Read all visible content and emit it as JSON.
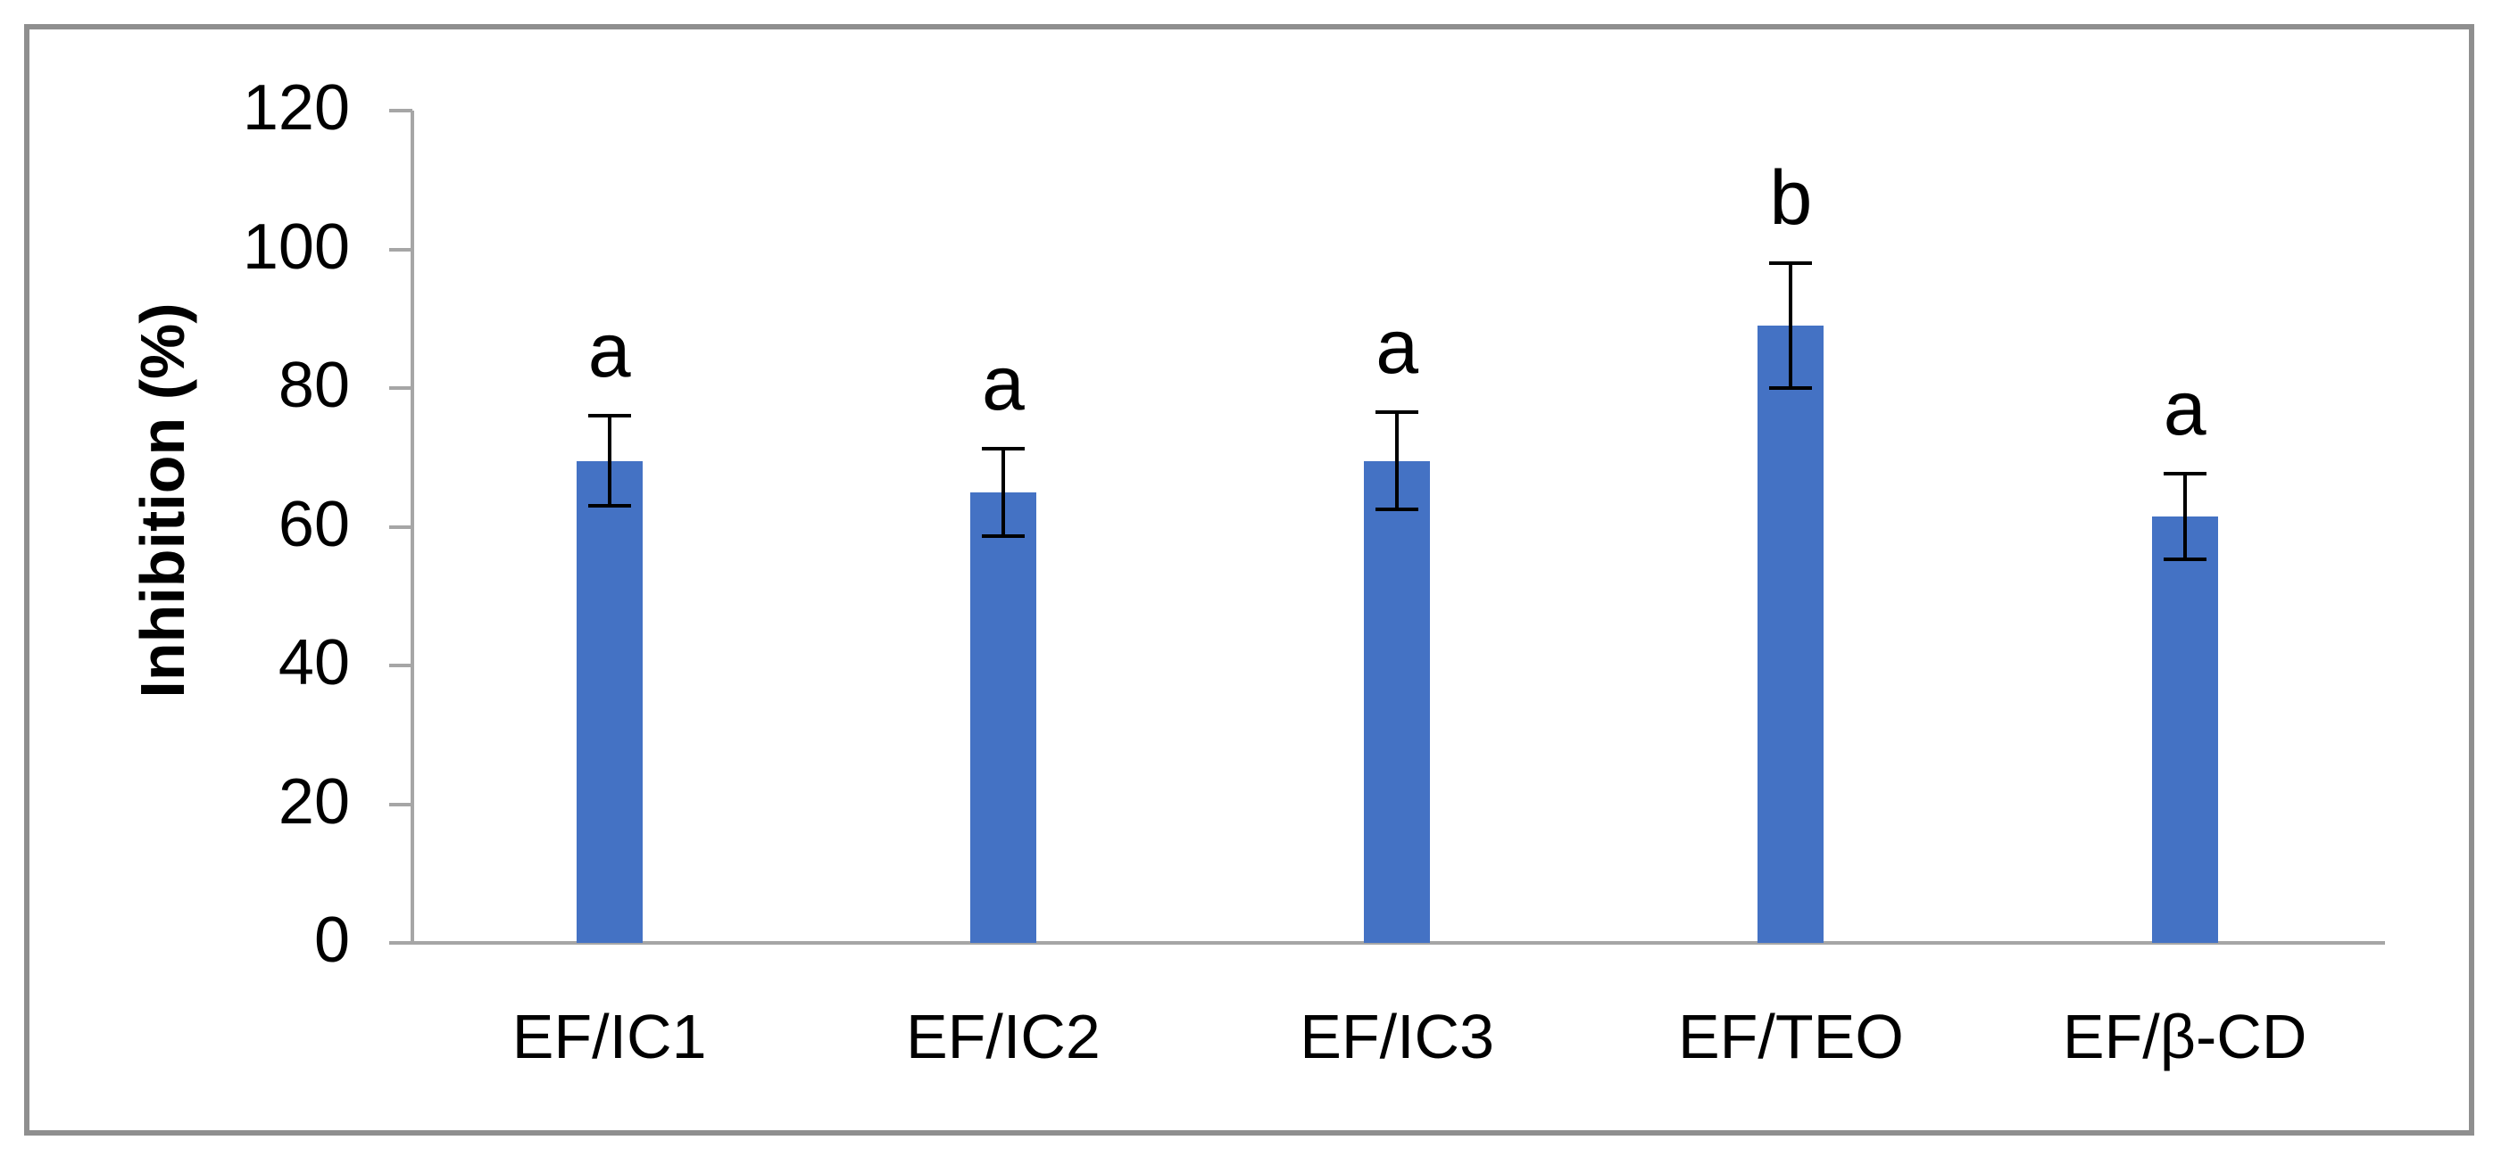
{
  "figure": {
    "background_color": "#ffffff",
    "frame_border_color": "#8f8f8f"
  },
  "chart_data": {
    "type": "bar",
    "title": "",
    "xlabel": "",
    "ylabel": "Inhibition (%)",
    "categories": [
      "EF/IC1",
      "EF/IC2",
      "EF/IC3",
      "EF/TEO",
      "EF/β-CD"
    ],
    "values": [
      69.5,
      65,
      69.5,
      89,
      61.5
    ],
    "error_bars": [
      6.5,
      6.3,
      7,
      9,
      6.2
    ],
    "significance_letters": [
      "a",
      "a",
      "a",
      "b",
      "a"
    ],
    "ylim": [
      0,
      120
    ],
    "yticks": [
      0,
      20,
      40,
      60,
      80,
      100,
      120
    ],
    "bar_color": "#4472c4",
    "axis_color": "#a6a6a6",
    "error_bar_color": "#000000",
    "text_color": "#000000",
    "grid": false,
    "legend_position": "none"
  }
}
